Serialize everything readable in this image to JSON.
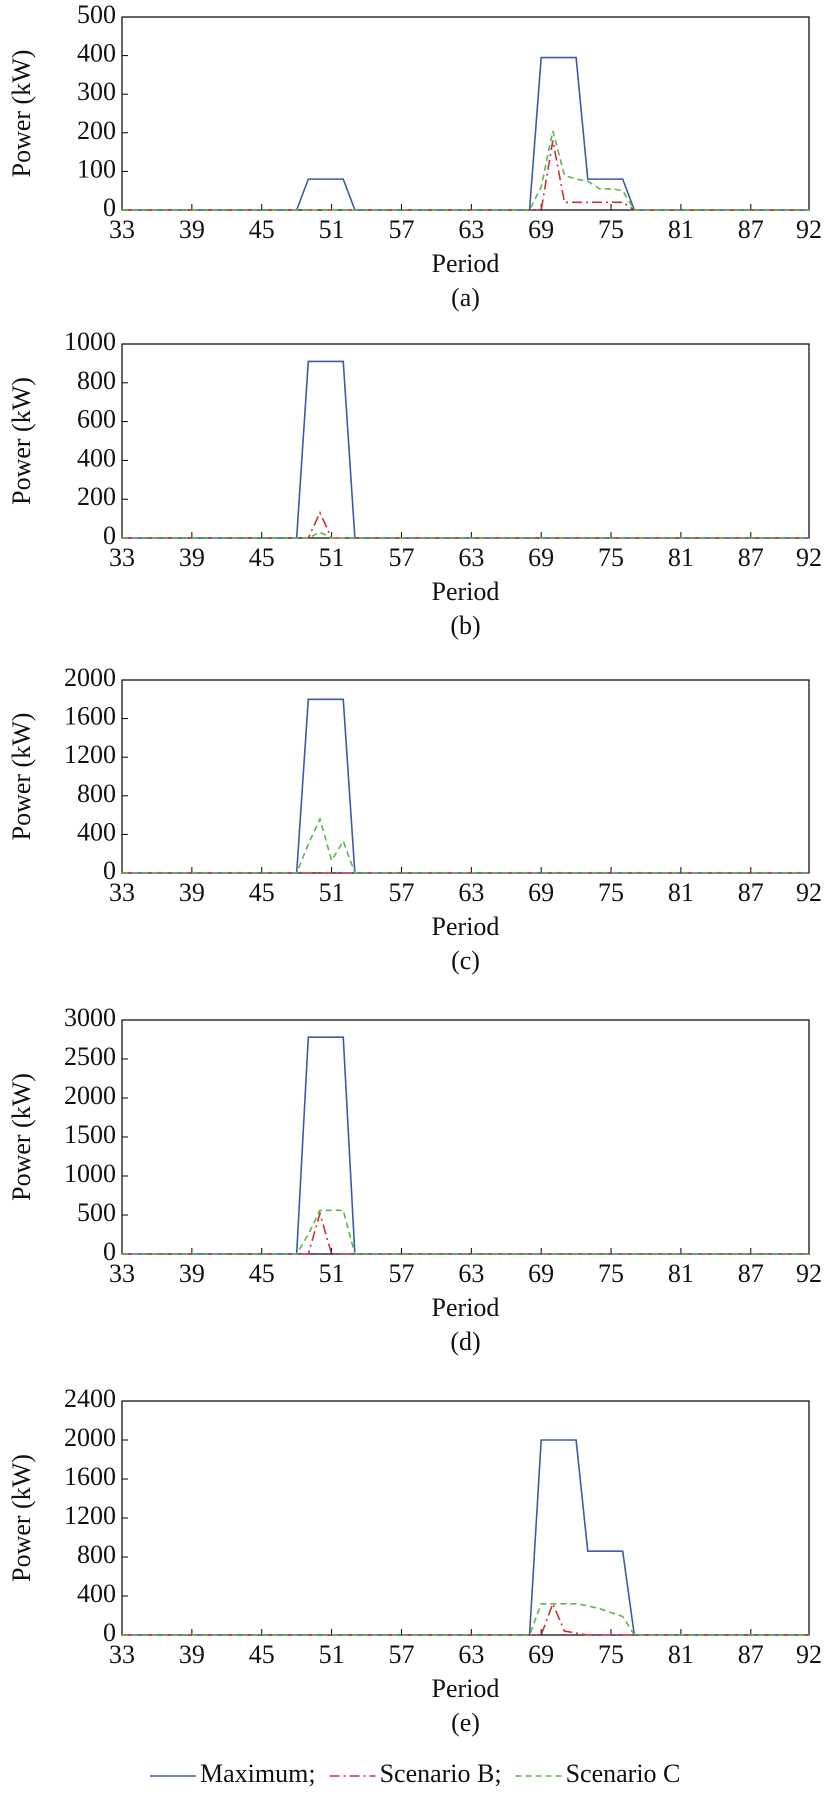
{
  "chart_data": [
    {
      "type": "line",
      "subtitle": "(a)",
      "x_label": "Period",
      "y_label": "Power (kW)",
      "x": [
        33,
        47,
        48,
        49,
        50,
        51,
        52,
        53,
        54,
        68,
        69,
        70,
        71,
        72,
        73,
        74,
        75,
        76,
        77,
        78,
        92
      ],
      "xlim": [
        33,
        92
      ],
      "xticks": [
        33,
        39,
        45,
        51,
        57,
        63,
        69,
        75,
        81,
        87,
        92
      ],
      "ylim": [
        0,
        500
      ],
      "yticks": [
        0,
        100,
        200,
        300,
        400,
        500
      ],
      "series": [
        {
          "name": "Maximum;",
          "color": "#3b5ba8",
          "style": "solid",
          "values": [
            0,
            0,
            0,
            80,
            80,
            80,
            80,
            0,
            0,
            0,
            395,
            395,
            395,
            395,
            80,
            80,
            80,
            80,
            0,
            0,
            0
          ]
        },
        {
          "name": "Scenario B;",
          "color": "#c8323c",
          "style": "dashdot",
          "values": [
            0,
            0,
            0,
            0,
            0,
            0,
            0,
            0,
            0,
            0,
            0,
            180,
            20,
            20,
            20,
            20,
            20,
            20,
            0,
            0,
            0
          ]
        },
        {
          "name": "Scenario C",
          "color": "#5cb84a",
          "style": "dashed",
          "values": [
            0,
            0,
            0,
            0,
            0,
            0,
            0,
            0,
            0,
            0,
            60,
            205,
            90,
            80,
            75,
            55,
            55,
            50,
            0,
            0,
            0
          ]
        }
      ]
    },
    {
      "type": "line",
      "subtitle": "(b)",
      "x_label": "Period",
      "y_label": "Power (kW)",
      "x": [
        33,
        47,
        48,
        49,
        50,
        51,
        52,
        53,
        54,
        68,
        69,
        70,
        71,
        72,
        73,
        74,
        75,
        76,
        77,
        78,
        92
      ],
      "xlim": [
        33,
        92
      ],
      "xticks": [
        33,
        39,
        45,
        51,
        57,
        63,
        69,
        75,
        81,
        87,
        92
      ],
      "ylim": [
        0,
        1000
      ],
      "yticks": [
        0,
        200,
        400,
        600,
        800,
        1000
      ],
      "series": [
        {
          "color": "#3b5ba8",
          "style": "solid",
          "values": [
            0,
            0,
            0,
            910,
            910,
            910,
            910,
            0,
            0,
            0,
            0,
            0,
            0,
            0,
            0,
            0,
            0,
            0,
            0,
            0,
            0
          ]
        },
        {
          "color": "#c8323c",
          "style": "dashdot",
          "values": [
            0,
            0,
            0,
            0,
            130,
            0,
            0,
            0,
            0,
            0,
            0,
            0,
            0,
            0,
            0,
            0,
            0,
            0,
            0,
            0,
            0
          ]
        },
        {
          "color": "#5cb84a",
          "style": "dashed",
          "values": [
            0,
            0,
            0,
            0,
            30,
            0,
            0,
            0,
            0,
            0,
            0,
            0,
            0,
            0,
            0,
            0,
            0,
            0,
            0,
            0,
            0
          ]
        }
      ]
    },
    {
      "type": "line",
      "subtitle": "(c)",
      "x_label": "Period",
      "y_label": "Power (kW)",
      "x": [
        33,
        47,
        48,
        49,
        50,
        51,
        52,
        53,
        54,
        68,
        69,
        70,
        71,
        72,
        73,
        74,
        75,
        76,
        77,
        78,
        92
      ],
      "xlim": [
        33,
        92
      ],
      "xticks": [
        33,
        39,
        45,
        51,
        57,
        63,
        69,
        75,
        81,
        87,
        92
      ],
      "ylim": [
        0,
        2000
      ],
      "yticks": [
        0,
        400,
        800,
        1200,
        1600,
        2000
      ],
      "series": [
        {
          "color": "#3b5ba8",
          "style": "solid",
          "values": [
            0,
            0,
            0,
            1800,
            1800,
            1800,
            1800,
            0,
            0,
            0,
            0,
            0,
            0,
            0,
            0,
            0,
            0,
            0,
            0,
            0,
            0
          ]
        },
        {
          "color": "#c8323c",
          "style": "dashdot",
          "values": [
            0,
            0,
            0,
            0,
            0,
            0,
            0,
            0,
            0,
            0,
            0,
            0,
            0,
            0,
            0,
            0,
            0,
            0,
            0,
            0,
            0
          ]
        },
        {
          "color": "#5cb84a",
          "style": "dashed",
          "values": [
            0,
            0,
            0,
            300,
            560,
            130,
            330,
            0,
            0,
            0,
            0,
            0,
            0,
            0,
            0,
            0,
            0,
            0,
            0,
            0,
            0
          ]
        }
      ]
    },
    {
      "type": "line",
      "subtitle": "(d)",
      "x_label": "Period",
      "y_label": "Power (kW)",
      "x": [
        33,
        47,
        48,
        49,
        50,
        51,
        52,
        53,
        54,
        68,
        69,
        70,
        71,
        72,
        73,
        74,
        75,
        76,
        77,
        78,
        92
      ],
      "xlim": [
        33,
        92
      ],
      "xticks": [
        33,
        39,
        45,
        51,
        57,
        63,
        69,
        75,
        81,
        87,
        92
      ],
      "ylim": [
        0,
        3000
      ],
      "yticks": [
        0,
        500,
        1000,
        1500,
        2000,
        2500,
        3000
      ],
      "series": [
        {
          "color": "#3b5ba8",
          "style": "solid",
          "values": [
            0,
            0,
            0,
            2780,
            2780,
            2780,
            2780,
            0,
            0,
            0,
            0,
            0,
            0,
            0,
            0,
            0,
            0,
            0,
            0,
            0,
            0
          ]
        },
        {
          "color": "#c8323c",
          "style": "dashdot",
          "values": [
            0,
            0,
            0,
            0,
            520,
            0,
            0,
            0,
            0,
            0,
            0,
            0,
            0,
            0,
            0,
            0,
            0,
            0,
            0,
            0,
            0
          ]
        },
        {
          "color": "#5cb84a",
          "style": "dashed",
          "values": [
            0,
            0,
            0,
            250,
            560,
            560,
            560,
            0,
            0,
            0,
            0,
            0,
            0,
            0,
            0,
            0,
            0,
            0,
            0,
            0,
            0
          ]
        }
      ]
    },
    {
      "type": "line",
      "subtitle": "(e)",
      "x_label": "Period",
      "y_label": "Power (kW)",
      "x": [
        33,
        47,
        48,
        49,
        50,
        51,
        52,
        53,
        54,
        68,
        69,
        70,
        71,
        72,
        73,
        74,
        75,
        76,
        77,
        78,
        92
      ],
      "xlim": [
        33,
        92
      ],
      "xticks": [
        33,
        39,
        45,
        51,
        57,
        63,
        69,
        75,
        81,
        87,
        92
      ],
      "ylim": [
        0,
        2400
      ],
      "yticks": [
        0,
        400,
        800,
        1200,
        1600,
        2000,
        2400
      ],
      "series": [
        {
          "color": "#3b5ba8",
          "style": "solid",
          "values": [
            0,
            0,
            0,
            0,
            0,
            0,
            0,
            0,
            0,
            0,
            2000,
            2000,
            2000,
            2000,
            860,
            860,
            860,
            860,
            0,
            0,
            0
          ]
        },
        {
          "color": "#c8323c",
          "style": "dashdot",
          "values": [
            0,
            0,
            0,
            0,
            0,
            0,
            0,
            0,
            0,
            0,
            0,
            320,
            40,
            20,
            0,
            0,
            0,
            0,
            0,
            0,
            0
          ]
        },
        {
          "color": "#5cb84a",
          "style": "dashed",
          "values": [
            0,
            0,
            0,
            0,
            0,
            0,
            0,
            0,
            0,
            0,
            320,
            320,
            320,
            320,
            300,
            270,
            230,
            190,
            0,
            0,
            0
          ]
        }
      ]
    }
  ]
}
